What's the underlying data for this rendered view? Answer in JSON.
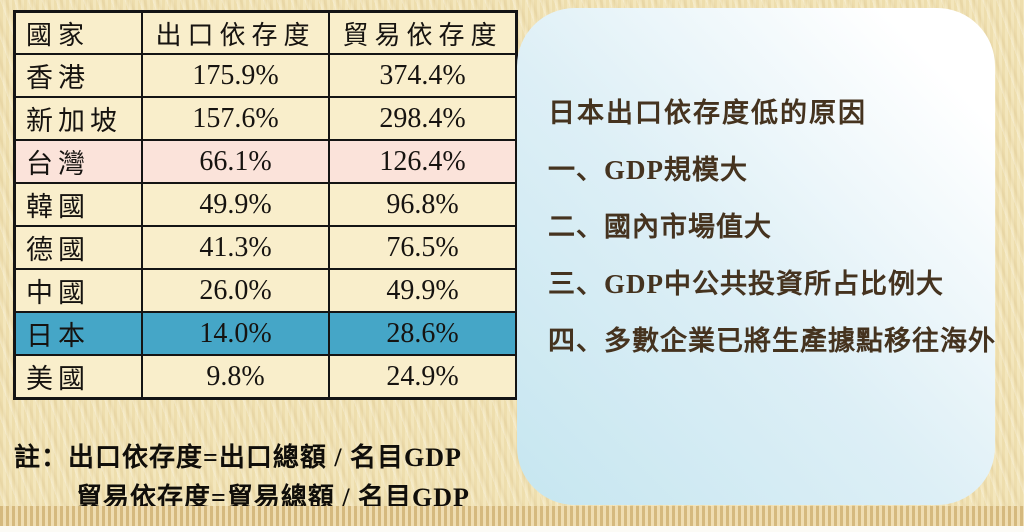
{
  "slide": {
    "table": {
      "col_headers": [
        "國家",
        "出口依存度",
        "貿易依存度"
      ],
      "rows": [
        {
          "country": "香港",
          "export_dependency": "175.9%",
          "trade_dependency": "374.4%"
        },
        {
          "country": "新加坡",
          "export_dependency": "157.6%",
          "trade_dependency": "298.4%"
        },
        {
          "country": "台灣",
          "export_dependency": "66.1%",
          "trade_dependency": "126.4%"
        },
        {
          "country": "韓國",
          "export_dependency": "49.9%",
          "trade_dependency": "96.8%"
        },
        {
          "country": "德國",
          "export_dependency": "41.3%",
          "trade_dependency": "76.5%"
        },
        {
          "country": "中國",
          "export_dependency": "26.0%",
          "trade_dependency": "49.9%"
        },
        {
          "country": "日本",
          "export_dependency": "14.0%",
          "trade_dependency": "28.6%"
        },
        {
          "country": "美國",
          "export_dependency": "9.8%",
          "trade_dependency": "24.9%"
        }
      ]
    },
    "note": {
      "line1": "註：出口依存度=出口總額 / 名目GDP",
      "line2": "貿易依存度=貿易總額 / 名目GDP"
    },
    "panel": {
      "title": "日本出口依存度低的原因",
      "items": [
        "一、GDP規模大",
        "二、國內市場值大",
        "三、GDP中公共投資所占比例大",
        "四、多數企業已將生產據點移往海外"
      ]
    },
    "colors": {
      "background": "#f2e3b4",
      "table_cell": "#f9eecb",
      "taiwan_highlight": "#fbe3da",
      "japan_highlight": "#45a6c7",
      "panel_gradient_start": "#c6e6f0",
      "panel_gradient_end": "#ffffff",
      "panel_text": "#45331f"
    }
  }
}
